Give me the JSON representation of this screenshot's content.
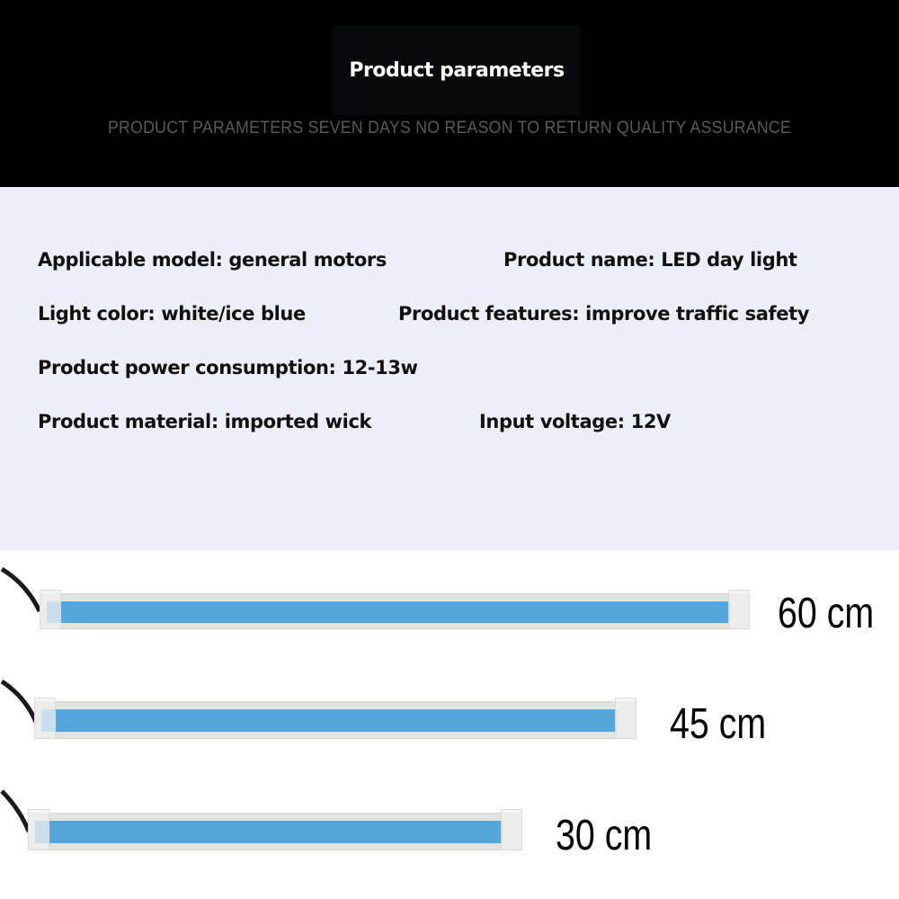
{
  "header": {
    "title": "Product parameters",
    "subtitle": "PRODUCT PARAMETERS SEVEN DAYS NO REASON TO RETURN QUALITY ASSURANCE"
  },
  "parameters": [
    "Applicable model: general motors",
    "Product name: LED day light",
    "Light color: white/ice blue",
    "Product features: improve traffic safety",
    "Product power consumption: 12-13w",
    "Product material: imported wick",
    "Input voltage: 12V"
  ],
  "strips": [
    {
      "length_label": "60 cm"
    },
    {
      "length_label": "45 cm"
    },
    {
      "length_label": "30 cm"
    }
  ],
  "colors": {
    "header_bg": "#000000",
    "params_bg": "#eeeef8",
    "strip_blue": "#55a6dc"
  }
}
